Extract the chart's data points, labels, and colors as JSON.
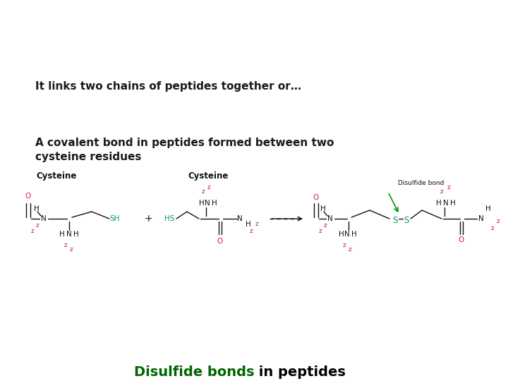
{
  "title_part1": "Disulfide bonds",
  "title_part2": " in peptides",
  "title_color1": "#006400",
  "title_color2": "#000000",
  "title_fontsize": 14,
  "body_text1": "A covalent bond in peptides formed between two\ncysteine residues",
  "body_text2": "It links two chains of peptides together or…",
  "body_fontsize": 11,
  "body_color": "#1a1a1a",
  "background_color": "#ffffff",
  "pink_color": "#cc1177",
  "teal_color": "#009966",
  "black_color": "#111111",
  "green_arrow_color": "#009900"
}
